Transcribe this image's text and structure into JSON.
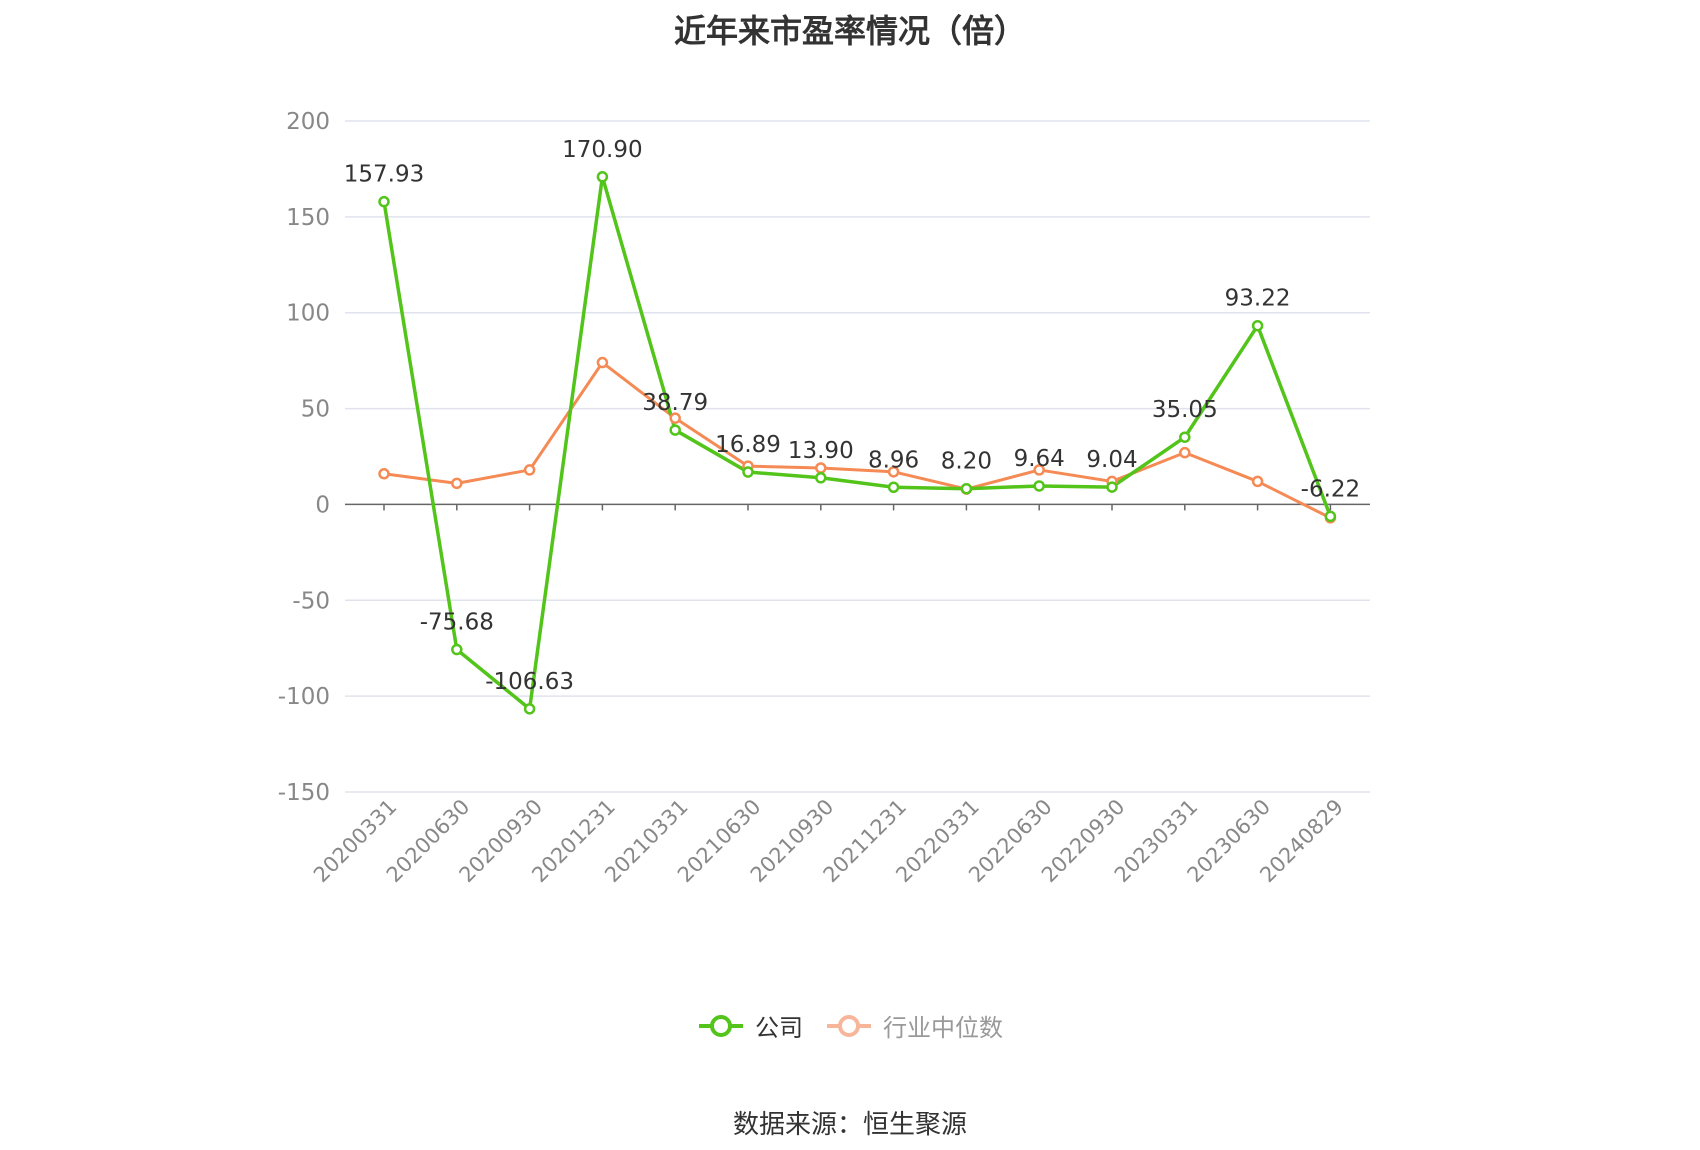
{
  "chart_data": {
    "type": "line",
    "title": "近年来市盈率情况（倍）",
    "categories": [
      "20200331",
      "20200630",
      "20200930",
      "20201231",
      "20210331",
      "20210630",
      "20210930",
      "20211231",
      "20220331",
      "20220630",
      "20220930",
      "20230331",
      "20230630",
      "20240829"
    ],
    "series": [
      {
        "name": "公司",
        "color": "#52c41a",
        "values": [
          157.93,
          -75.68,
          -106.63,
          170.9,
          38.79,
          16.89,
          13.9,
          8.96,
          8.2,
          9.64,
          9.04,
          35.05,
          93.22,
          -6.22
        ],
        "labels": [
          "157.93",
          "-75.68",
          "-106.63",
          "170.90",
          "38.79",
          "16.89",
          "13.90",
          "8.96",
          "8.20",
          "9.64",
          "9.04",
          "35.05",
          "93.22",
          "-6.22"
        ]
      },
      {
        "name": "行业中位数",
        "color": "#f58a54",
        "values": [
          16,
          11,
          18,
          74,
          45,
          20,
          19,
          17,
          8,
          18,
          12,
          27,
          12,
          -7
        ]
      }
    ],
    "ylim": [
      -150,
      200
    ],
    "yticks": [
      -150,
      -100,
      -50,
      0,
      50,
      100,
      150,
      200
    ],
    "grid": true,
    "legend_position": "bottom"
  },
  "source_note": "数据来源：恒生聚源"
}
